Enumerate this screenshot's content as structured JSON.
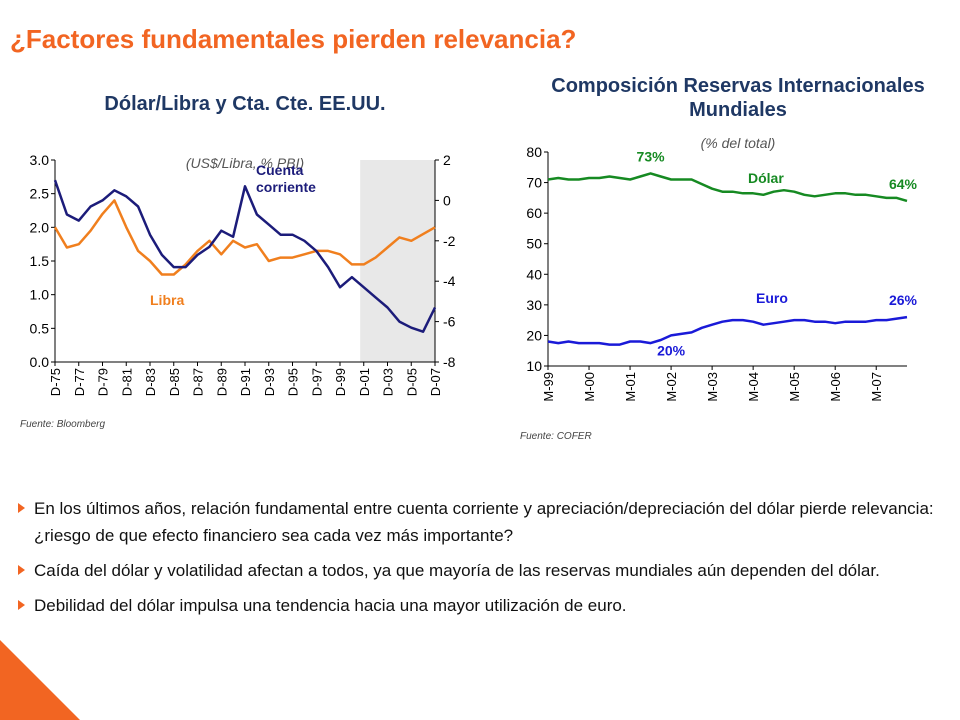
{
  "slide": {
    "title": "¿Factores fundamentales pierden relevancia?",
    "bullets": [
      "En los últimos años, relación fundamental entre cuenta corriente y apreciación/depreciación del dólar pierde relevancia: ¿riesgo de que efecto financiero sea cada vez más importante?",
      "Caída del dólar y volatilidad afectan a todos, ya que mayoría de las reservas mundiales aún dependen del dólar.",
      "Debilidad del dólar impulsa una tendencia hacia una mayor utilización de euro."
    ]
  },
  "chart_data": [
    {
      "type": "line",
      "title": "Dólar/Libra y Cta. Cte. EE.UU.",
      "subtitle": "(US$/Libra, % PBI)",
      "source": "Fuente: Bloomberg",
      "categories": [
        "D-75",
        null,
        "D-77",
        null,
        "D-79",
        null,
        "D-81",
        null,
        "D-83",
        null,
        "D-85",
        null,
        "D-87",
        null,
        "D-89",
        null,
        "D-91",
        null,
        "D-93",
        null,
        "D-95",
        null,
        "D-97",
        null,
        "D-99",
        null,
        "D-01",
        null,
        "D-03",
        null,
        "D-05",
        null,
        "D-07"
      ],
      "shaded_range": [
        "D-01",
        "D-07"
      ],
      "ylim": [
        0,
        3
      ],
      "yticks": [
        {
          "value": 0,
          "label": "0.0"
        },
        0.5,
        {
          "value": 1,
          "label": "1.0"
        },
        1.5,
        {
          "value": 2,
          "label": "2.0"
        },
        2.5,
        {
          "value": 3,
          "label": "3.0"
        }
      ],
      "y2lim": [
        -8,
        2
      ],
      "y2ticks": [
        -8,
        -6,
        -4,
        -2,
        0,
        2
      ],
      "series": [
        {
          "name": "Libra",
          "color": "#f07f1e",
          "values": [
            2.0,
            1.7,
            1.75,
            1.95,
            2.2,
            2.4,
            2.0,
            1.65,
            1.5,
            1.3,
            1.3,
            1.45,
            1.65,
            1.8,
            1.6,
            1.8,
            1.7,
            1.75,
            1.5,
            1.55,
            1.55,
            1.6,
            1.65,
            1.65,
            1.6,
            1.45,
            1.45,
            1.55,
            1.7,
            1.85,
            1.8,
            1.9,
            2.0
          ]
        },
        {
          "name": "Cuenta corriente",
          "color": "#1c1c7a",
          "axis": "y2",
          "values": [
            1.0,
            -0.7,
            -1.0,
            -0.3,
            0.0,
            0.5,
            0.2,
            -0.3,
            -1.7,
            -2.7,
            -3.3,
            -3.3,
            -2.7,
            -2.3,
            -1.5,
            -1.8,
            0.7,
            -0.7,
            -1.2,
            -1.7,
            -1.7,
            -2.0,
            -2.5,
            -3.3,
            -4.3,
            -3.8,
            -4.3,
            -4.8,
            -5.3,
            -6.0,
            -6.3,
            -6.5,
            -5.3
          ]
        }
      ]
    },
    {
      "type": "line",
      "title": "Composición Reservas Internacionales Mundiales",
      "subtitle": "(% del total)",
      "source": "Fuente: COFER",
      "categories": [
        "M-99",
        null,
        null,
        null,
        "M-00",
        null,
        null,
        null,
        "M-01",
        null,
        null,
        null,
        "M-02",
        null,
        null,
        null,
        "M-03",
        null,
        null,
        null,
        "M-04",
        null,
        null,
        null,
        "M-05",
        null,
        null,
        null,
        "M-06",
        null,
        null,
        null,
        "M-07",
        null,
        null,
        null
      ],
      "ylim": [
        10,
        80
      ],
      "yticks": [
        10,
        20,
        30,
        40,
        50,
        60,
        70,
        80
      ],
      "series": [
        {
          "name": "Dólar",
          "color": "#168a22",
          "values": [
            71,
            71.5,
            71,
            71,
            71.5,
            71.5,
            72,
            71.5,
            71,
            72,
            73,
            72,
            71,
            71,
            71,
            69.5,
            68,
            67,
            67,
            66.5,
            66.5,
            66,
            67,
            67.5,
            67,
            66,
            65.5,
            66,
            66.5,
            66.5,
            66,
            66,
            65.5,
            65,
            65,
            64
          ],
          "value_labels": [
            null,
            null,
            null,
            null,
            null,
            null,
            null,
            null,
            null,
            null,
            "73%",
            null,
            null,
            null,
            null,
            null,
            null,
            null,
            null,
            null,
            null,
            null,
            null,
            null,
            null,
            null,
            null,
            null,
            null,
            null,
            null,
            null,
            null,
            null,
            null,
            "64%"
          ]
        },
        {
          "name": "Euro",
          "color": "#1a1ad8",
          "values": [
            18,
            17.5,
            18,
            17.5,
            17.5,
            17.5,
            17,
            17,
            18,
            18,
            17.5,
            18.5,
            20,
            20.5,
            21,
            22.5,
            23.5,
            24.5,
            25,
            25,
            24.5,
            23.5,
            24,
            24.5,
            25,
            25,
            24.5,
            24.5,
            24,
            24.5,
            24.5,
            24.5,
            25,
            25,
            25.5,
            26
          ],
          "value_labels": [
            null,
            null,
            null,
            null,
            null,
            null,
            null,
            null,
            null,
            null,
            null,
            null,
            "20%",
            null,
            null,
            null,
            null,
            null,
            null,
            null,
            null,
            null,
            null,
            null,
            null,
            null,
            null,
            null,
            null,
            null,
            null,
            null,
            null,
            null,
            null,
            "26%"
          ]
        }
      ]
    }
  ]
}
